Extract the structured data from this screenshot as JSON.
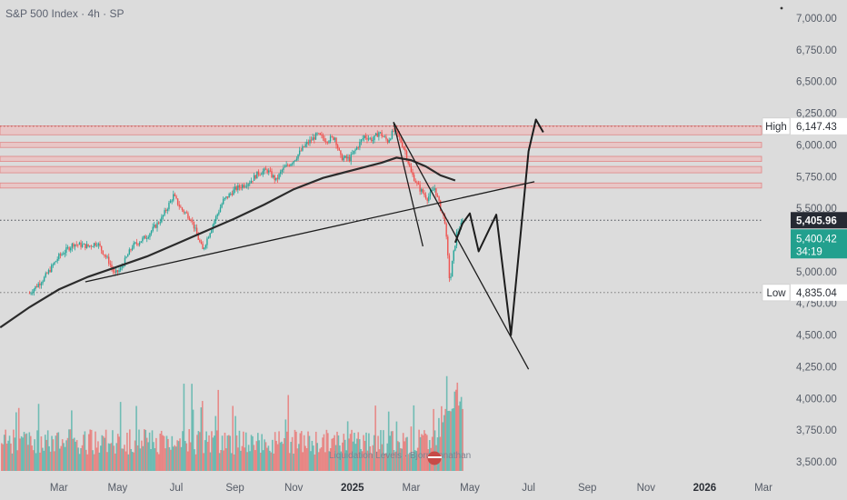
{
  "title": "S&P 500 Index · 4h · SP",
  "chart_data": {
    "type": "candlestick",
    "symbol": "S&P 500 Index",
    "interval": "4h",
    "exchange": "SP",
    "ylim": [
      3450,
      7100
    ],
    "y_ticks": [
      3500,
      3750,
      4000,
      4250,
      4500,
      4750,
      5000,
      5250,
      5500,
      5750,
      6000,
      6250,
      6500,
      6750,
      7000
    ],
    "y_tick_labels": [
      "3,500.00",
      "3,750.00",
      "4,000.00",
      "4,250.00",
      "4,500.00",
      "4,750.00",
      "5,000.00",
      "5,250.00",
      "5,500.00",
      "5,750.00",
      "6,000.00",
      "6,250.00",
      "6,500.00",
      "6,750.00",
      "7,000.00"
    ],
    "x_ticks": [
      {
        "label": "Mar",
        "t": 2.0
      },
      {
        "label": "May",
        "t": 4.0
      },
      {
        "label": "Jul",
        "t": 6.0
      },
      {
        "label": "Sep",
        "t": 8.0
      },
      {
        "label": "Nov",
        "t": 10.0
      },
      {
        "label": "2025",
        "t": 12.0,
        "bold": true
      },
      {
        "label": "Mar",
        "t": 14.0
      },
      {
        "label": "May",
        "t": 16.0
      },
      {
        "label": "Jul",
        "t": 18.0
      },
      {
        "label": "Sep",
        "t": 20.0
      },
      {
        "label": "Nov",
        "t": 22.0
      },
      {
        "label": "2026",
        "t": 24.0,
        "bold": true
      },
      {
        "label": "Mar",
        "t": 26.0
      }
    ],
    "price_anchors": [
      [
        1.0,
        4830
      ],
      [
        1.5,
        4950
      ],
      [
        2.0,
        5120
      ],
      [
        2.5,
        5220
      ],
      [
        3.0,
        5200
      ],
      [
        3.3,
        5230
      ],
      [
        3.7,
        5080
      ],
      [
        3.9,
        4980
      ],
      [
        4.1,
        5020
      ],
      [
        4.5,
        5200
      ],
      [
        5.0,
        5280
      ],
      [
        5.5,
        5420
      ],
      [
        5.9,
        5600
      ],
      [
        6.15,
        5500
      ],
      [
        6.5,
        5420
      ],
      [
        6.75,
        5260
      ],
      [
        6.9,
        5170
      ],
      [
        7.2,
        5350
      ],
      [
        7.6,
        5560
      ],
      [
        8.0,
        5650
      ],
      [
        8.5,
        5710
      ],
      [
        8.8,
        5780
      ],
      [
        9.1,
        5800
      ],
      [
        9.4,
        5720
      ],
      [
        9.6,
        5800
      ],
      [
        10.0,
        5880
      ],
      [
        10.4,
        6000
      ],
      [
        10.8,
        6080
      ],
      [
        11.1,
        6040
      ],
      [
        11.4,
        6060
      ],
      [
        11.6,
        5900
      ],
      [
        11.9,
        5890
      ],
      [
        12.1,
        5960
      ],
      [
        12.4,
        6070
      ],
      [
        12.7,
        6040
      ],
      [
        12.9,
        6100
      ],
      [
        13.2,
        6030
      ],
      [
        13.45,
        6130
      ],
      [
        13.55,
        6080
      ],
      [
        13.8,
        5950
      ],
      [
        14.0,
        5780
      ],
      [
        14.3,
        5650
      ],
      [
        14.55,
        5580
      ],
      [
        14.8,
        5660
      ],
      [
        15.0,
        5500
      ],
      [
        15.15,
        5400
      ],
      [
        15.25,
        5110
      ],
      [
        15.32,
        4900
      ],
      [
        15.4,
        5070
      ],
      [
        15.55,
        5300
      ],
      [
        15.75,
        5390
      ]
    ],
    "moving_average_200": [
      [
        0,
        4560
      ],
      [
        1,
        4720
      ],
      [
        2,
        4860
      ],
      [
        3,
        4960
      ],
      [
        4,
        5040
      ],
      [
        5,
        5120
      ],
      [
        6,
        5220
      ],
      [
        7,
        5320
      ],
      [
        8,
        5420
      ],
      [
        9,
        5530
      ],
      [
        10,
        5650
      ],
      [
        11,
        5740
      ],
      [
        12,
        5800
      ],
      [
        13,
        5860
      ],
      [
        13.5,
        5900
      ],
      [
        14,
        5880
      ],
      [
        14.5,
        5830
      ],
      [
        15,
        5760
      ],
      [
        15.5,
        5720
      ]
    ],
    "trendline": {
      "from": [
        2.9,
        4920
      ],
      "to": [
        18.2,
        5710
      ]
    },
    "drawn_path": [
      [
        15.5,
        5230
      ],
      [
        15.75,
        5380
      ],
      [
        16.0,
        5460
      ],
      [
        16.3,
        5160
      ],
      [
        16.9,
        5450
      ],
      [
        17.4,
        4500
      ],
      [
        18.0,
        5950
      ],
      [
        18.25,
        6200
      ],
      [
        18.5,
        6100
      ]
    ],
    "wedge_lines": [
      {
        "from": [
          13.4,
          6180
        ],
        "to": [
          14.4,
          5200
        ]
      },
      {
        "from": [
          13.4,
          6180
        ],
        "to": [
          18.0,
          4230
        ]
      }
    ],
    "resistance_zones": [
      [
        6080,
        6150
      ],
      [
        5980,
        6020
      ],
      [
        5870,
        5910
      ],
      [
        5780,
        5830
      ],
      [
        5660,
        5700
      ]
    ],
    "reference_levels": {
      "high": 6147.43,
      "low": 4835.04,
      "last": 5405.96
    },
    "price_labels": {
      "high_tag": "High",
      "high_value": "6,147.43",
      "low_tag": "Low",
      "low_value": "4,835.04",
      "last_value": "5,405.96",
      "current_value": "5,400.42",
      "countdown": "34:19"
    },
    "volume_watermark": "Liquidation Levels · Bjorn Jonathan",
    "colors": {
      "up": "#26a69a",
      "down": "#ef5350",
      "ma": "#2b2b2b",
      "drawing": "#1c1c1c",
      "zone_fill": "#f2b5b5",
      "zone_border": "#e06666",
      "current_label": "#22a08e",
      "last_label": "#262a33",
      "background": "#dcdcdc"
    }
  }
}
